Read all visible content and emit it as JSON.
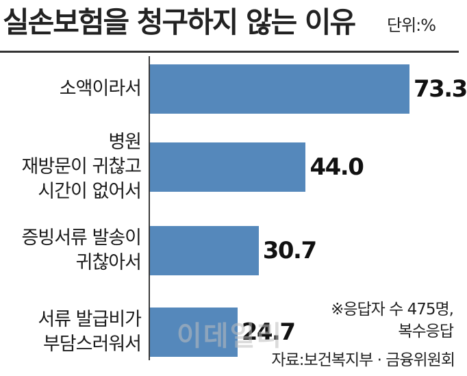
{
  "chart_data": {
    "type": "bar",
    "orientation": "horizontal",
    "title": "실손보험을 청구하지 않는 이유",
    "unit_label": "단위:%",
    "categories": [
      [
        "소액이라서"
      ],
      [
        "병원",
        "재방문이 귀찮고",
        "시간이 없어서"
      ],
      [
        "증빙서류 발송이",
        "귀찮아서"
      ],
      [
        "서류 발급비가",
        "부담스러워서"
      ]
    ],
    "values": [
      73.3,
      44.0,
      30.7,
      24.7
    ],
    "value_labels": [
      "73.3",
      "44.0",
      "30.7",
      "24.7"
    ],
    "bar_color": "#5588bb",
    "xlim": [
      0,
      100
    ],
    "grid": false,
    "legend": "none"
  },
  "note": [
    "※응답자 수 475명,",
    "복수응답"
  ],
  "source": "자료:보건복지부 · 금융위원회",
  "watermark": "이데일리"
}
